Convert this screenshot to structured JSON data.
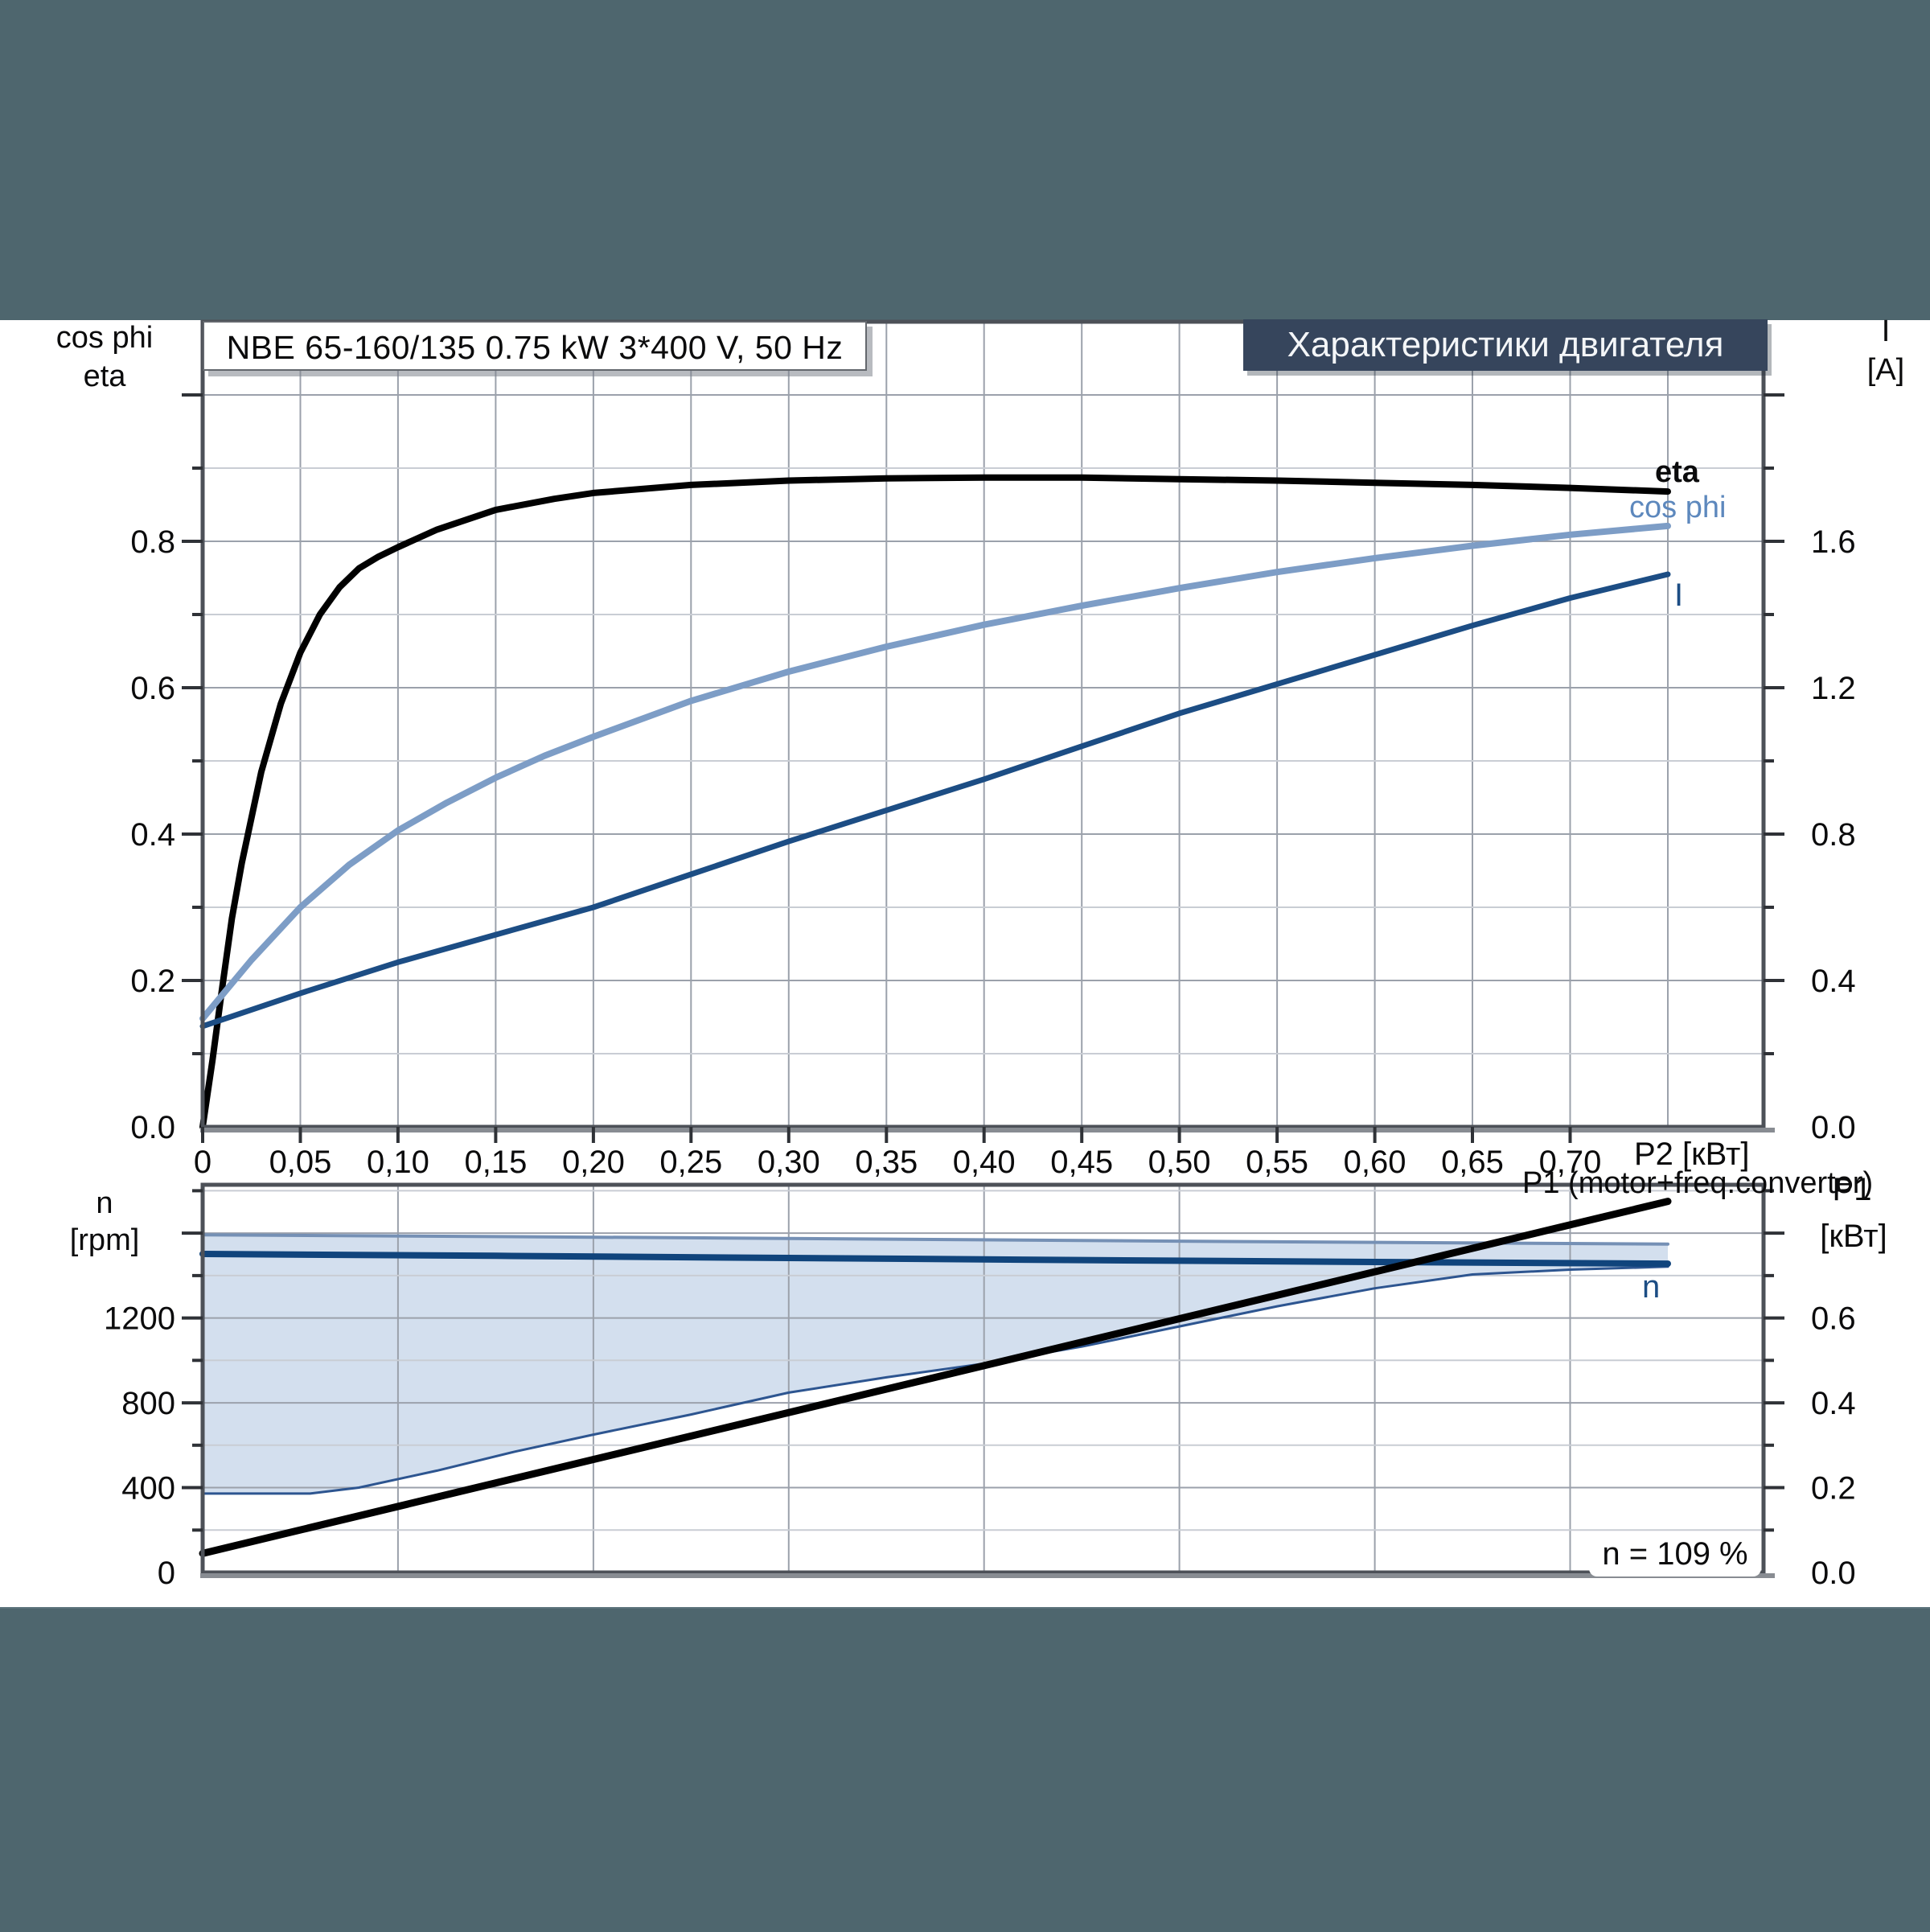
{
  "header": {
    "title": "Характеристики двигателя"
  },
  "title_box": {
    "text": "NBE 65-160/135   0.75 kW   3*400 V, 50 Hz"
  },
  "axis_labels": {
    "top_left_1": "cos phi",
    "top_left_2": "eta",
    "top_right_1": "I",
    "top_right_2": "[A]",
    "x_unit": "P2 [кВт]",
    "p1_series_label": "P1 (motor+freq.converter)",
    "bottom_left_1": "n",
    "bottom_left_2": "[rpm]",
    "bottom_right_1": "P1",
    "bottom_right_2": "[кВт]"
  },
  "curve_labels": {
    "eta": "eta",
    "cos_phi": "cos phi",
    "current": "I",
    "speed": "n"
  },
  "annotation": {
    "speed_percent": "n = 109 %"
  },
  "colors": {
    "eta": "#000000",
    "cos_phi": "#7d9dc6",
    "current": "#1c4d84",
    "speed": "#10447c",
    "p1": "#000000",
    "range_fill": "#d3dfee",
    "range_upper_border": "#7590b5",
    "range_lower_border": "#2d5590",
    "grid_major": "#9ba1ab",
    "grid_minor": "#c9cdd4",
    "frame": "#4d5158",
    "baseline": "#888c92",
    "tick": "#2f3237",
    "header_bg": "#36455c",
    "band": "#4e666e"
  },
  "chart_data": [
    {
      "type": "line",
      "title": "NBE 65-160/135 0.75 kW 3*400 V, 50 Hz",
      "xlabel": "P2 [кВт]",
      "ylabel_left": "cos phi / eta",
      "ylabel_right": "I [A]",
      "xlim": [
        0,
        0.799
      ],
      "ylim_left": [
        0,
        1.1
      ],
      "ylim_right": [
        0,
        2.2
      ],
      "grid": {
        "x_step": 0.05,
        "y_minor": 0.1,
        "y_major": 0.2
      },
      "x_ticks": [
        0,
        0.05,
        0.1,
        0.15,
        0.2,
        0.25,
        0.3,
        0.35,
        0.4,
        0.45,
        0.5,
        0.55,
        0.6,
        0.65,
        0.7
      ],
      "x_tick_labels": [
        "0",
        "0,05",
        "0,10",
        "0,15",
        "0,20",
        "0,25",
        "0,30",
        "0,35",
        "0,40",
        "0,45",
        "0,50",
        "0,55",
        "0,60",
        "0,65",
        "0,70"
      ],
      "y_ticks_left": [
        0,
        0.2,
        0.4,
        0.6,
        0.8
      ],
      "y_tick_labels_left": [
        "0.0",
        "0.2",
        "0.4",
        "0.6",
        "0.8"
      ],
      "y_ticks_right": [
        0,
        0.4,
        0.8,
        1.2,
        1.6
      ],
      "y_tick_labels_right": [
        "0.0",
        "0.4",
        "0.8",
        "1.2",
        "1.6"
      ],
      "series": [
        {
          "id": "eta-curve",
          "name": "eta",
          "axis": "left",
          "color": "#000000",
          "width": 8,
          "points": [
            [
              0,
              0
            ],
            [
              0.005,
              0.09
            ],
            [
              0.01,
              0.19
            ],
            [
              0.015,
              0.285
            ],
            [
              0.02,
              0.36
            ],
            [
              0.03,
              0.485
            ],
            [
              0.04,
              0.578
            ],
            [
              0.05,
              0.648
            ],
            [
              0.06,
              0.7
            ],
            [
              0.07,
              0.737
            ],
            [
              0.08,
              0.763
            ],
            [
              0.09,
              0.779
            ],
            [
              0.1,
              0.792
            ],
            [
              0.12,
              0.816
            ],
            [
              0.15,
              0.843
            ],
            [
              0.18,
              0.858
            ],
            [
              0.2,
              0.866
            ],
            [
              0.25,
              0.877
            ],
            [
              0.3,
              0.883
            ],
            [
              0.35,
              0.886
            ],
            [
              0.4,
              0.887
            ],
            [
              0.45,
              0.887
            ],
            [
              0.5,
              0.885
            ],
            [
              0.55,
              0.883
            ],
            [
              0.6,
              0.88
            ],
            [
              0.65,
              0.877
            ],
            [
              0.7,
              0.873
            ],
            [
              0.75,
              0.868
            ]
          ]
        },
        {
          "id": "cos-phi-curve",
          "name": "cos phi",
          "axis": "left",
          "color": "#7d9dc6",
          "width": 8,
          "points": [
            [
              0,
              0.148
            ],
            [
              0.025,
              0.228
            ],
            [
              0.05,
              0.3
            ],
            [
              0.075,
              0.358
            ],
            [
              0.1,
              0.405
            ],
            [
              0.125,
              0.443
            ],
            [
              0.15,
              0.477
            ],
            [
              0.175,
              0.507
            ],
            [
              0.2,
              0.533
            ],
            [
              0.25,
              0.582
            ],
            [
              0.3,
              0.622
            ],
            [
              0.35,
              0.656
            ],
            [
              0.4,
              0.686
            ],
            [
              0.45,
              0.712
            ],
            [
              0.5,
              0.736
            ],
            [
              0.55,
              0.758
            ],
            [
              0.6,
              0.777
            ],
            [
              0.65,
              0.794
            ],
            [
              0.7,
              0.809
            ],
            [
              0.75,
              0.821
            ]
          ]
        },
        {
          "id": "current-curve",
          "name": "I",
          "axis": "right",
          "color": "#1c4d84",
          "width": 7,
          "points": [
            [
              0,
              0.275
            ],
            [
              0.05,
              0.365
            ],
            [
              0.1,
              0.45
            ],
            [
              0.15,
              0.525
            ],
            [
              0.2,
              0.6
            ],
            [
              0.25,
              0.69
            ],
            [
              0.3,
              0.78
            ],
            [
              0.35,
              0.865
            ],
            [
              0.4,
              0.95
            ],
            [
              0.45,
              1.04
            ],
            [
              0.5,
              1.13
            ],
            [
              0.55,
              1.21
            ],
            [
              0.6,
              1.29
            ],
            [
              0.65,
              1.37
            ],
            [
              0.7,
              1.445
            ],
            [
              0.75,
              1.51
            ]
          ]
        }
      ]
    },
    {
      "type": "line+area",
      "xlabel": "P2 [кВт]",
      "ylabel_left": "n [rpm]",
      "ylabel_right": "P1 [кВт]",
      "xlim": [
        0,
        0.799
      ],
      "ylim_left": [
        0,
        1828
      ],
      "ylim_right": [
        0,
        0.914
      ],
      "grid": {
        "x_step": 0.1,
        "y_minor": 200,
        "y_major": 400
      },
      "x_ticks": [],
      "x_tick_labels": [],
      "y_ticks_left": [
        0,
        400,
        800,
        1200
      ],
      "y_tick_labels_left": [
        "0",
        "400",
        "800",
        "1200"
      ],
      "y_ticks_right": [
        0,
        0.2,
        0.4,
        0.6
      ],
      "y_tick_labels_right": [
        "0.0",
        "0.2",
        "0.4",
        "0.6"
      ],
      "annotation": "n = 109 %",
      "series": [
        {
          "id": "operating-range",
          "name": "speed operating range",
          "type": "area",
          "axis": "left",
          "fill": "#d3dfee",
          "upper": [
            [
              0,
              1592
            ],
            [
              0.25,
              1578
            ],
            [
              0.5,
              1562
            ],
            [
              0.75,
              1548
            ]
          ],
          "lower": [
            [
              0,
              372
            ],
            [
              0.055,
              372
            ],
            [
              0.08,
              400
            ],
            [
              0.12,
              480
            ],
            [
              0.16,
              570
            ],
            [
              0.2,
              650
            ],
            [
              0.25,
              745
            ],
            [
              0.3,
              848
            ],
            [
              0.35,
              920
            ],
            [
              0.4,
              985
            ],
            [
              0.45,
              1065
            ],
            [
              0.5,
              1160
            ],
            [
              0.55,
              1255
            ],
            [
              0.6,
              1340
            ],
            [
              0.65,
              1405
            ],
            [
              0.7,
              1428
            ],
            [
              0.75,
              1442
            ]
          ]
        },
        {
          "id": "speed-curve",
          "name": "n",
          "axis": "left",
          "color": "#10447c",
          "width": 8,
          "points": [
            [
              0,
              1502
            ],
            [
              0.15,
              1493
            ],
            [
              0.3,
              1483
            ],
            [
              0.45,
              1473
            ],
            [
              0.6,
              1464
            ],
            [
              0.75,
              1456
            ]
          ]
        },
        {
          "id": "p1-curve",
          "name": "P1 (motor+freq.converter)",
          "axis": "right",
          "color": "#000000",
          "width": 9,
          "points": [
            [
              0,
              0.045
            ],
            [
              0.75,
              0.875
            ]
          ]
        }
      ]
    }
  ]
}
